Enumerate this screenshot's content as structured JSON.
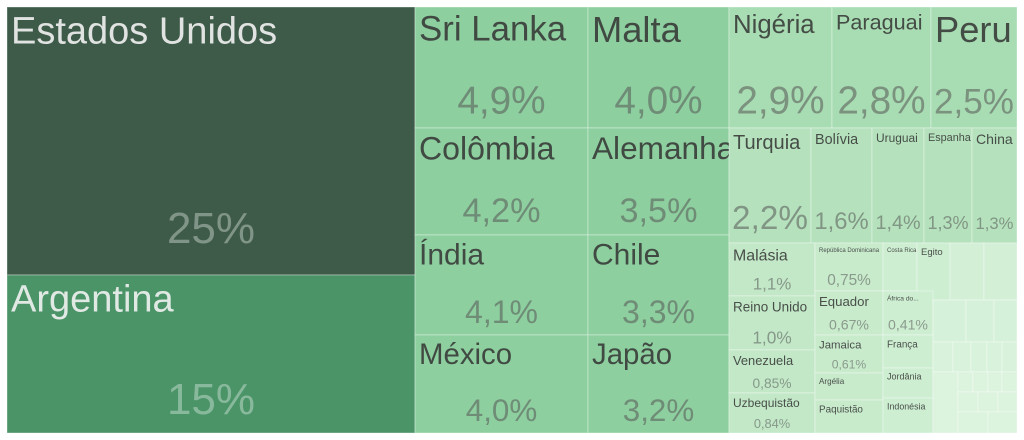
{
  "chart_data": {
    "type": "treemap",
    "categories": [
      "Estados Unidos",
      "Argentina",
      "Sri Lanka",
      "Malta",
      "Colômbia",
      "Alemanha",
      "Índia",
      "Chile",
      "México",
      "Japão",
      "Nigéria",
      "Paraguai",
      "Peru",
      "Turquia",
      "Bolívia",
      "Uruguai",
      "Espanha",
      "China",
      "Malásia",
      "Reino Unido",
      "Venezuela",
      "Uzbequistão",
      "República Dominicana",
      "Equador",
      "Jamaica",
      "Argélia",
      "Paquistão",
      "Costa Rica",
      "Egito",
      "África do...",
      "França",
      "Jordânia",
      "Indonésia"
    ],
    "values": [
      25,
      15,
      4.9,
      4.0,
      4.2,
      3.5,
      4.1,
      3.3,
      4.0,
      3.2,
      2.9,
      2.8,
      2.5,
      2.2,
      1.6,
      1.4,
      1.3,
      1.3,
      1.1,
      1.0,
      0.85,
      0.84,
      0.75,
      0.67,
      0.61,
      0.5,
      0.5,
      0.45,
      0.45,
      0.41,
      0.4,
      0.35,
      0.35
    ],
    "value_labels": [
      "25%",
      "15%",
      "4,9%",
      "4,0%",
      "4,2%",
      "3,5%",
      "4,1%",
      "3,3%",
      "4,0%",
      "3,2%",
      "2,9%",
      "2,8%",
      "2,5%",
      "2,2%",
      "1,6%",
      "1,4%",
      "1,3%",
      "1,3%",
      "1,1%",
      "1,0%",
      "0,85%",
      "0,84%",
      "0,75%",
      "0,67%",
      "0,61%",
      null,
      null,
      null,
      null,
      "0,41%",
      null,
      null,
      null
    ],
    "colors": [
      "#3d5b48",
      "#4a9467",
      "#8ecf9f",
      "#8ecf9f",
      "#8ecf9f",
      "#8ecf9f",
      "#8ecf9f",
      "#8ecf9f",
      "#8ecf9f",
      "#8ecf9f",
      "#a8dcb2",
      "#a8dcb2",
      "#a8dcb2",
      "#b5e2bd",
      "#b5e2bd",
      "#b5e2bd",
      "#b5e2bd",
      "#b5e2bd",
      "#c2e8c7",
      "#c2e8c7",
      "#c2e8c7",
      "#c2e8c7",
      "#c8ebcc",
      "#c8ebcc",
      "#c8ebcc",
      "#c8ebcc",
      "#c8ebcc",
      "#cdeed1",
      "#cdeed1",
      "#cdeed1",
      "#cdeed1",
      "#cdeed1",
      "#cdeed1"
    ]
  }
}
